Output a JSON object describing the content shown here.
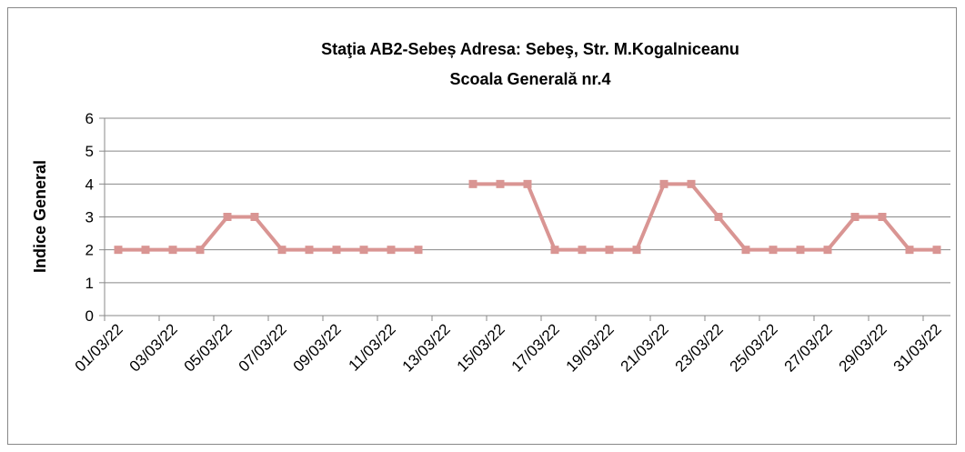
{
  "chart_data": {
    "type": "line",
    "title": [
      "Staţia AB2-Sebeș  Adresa: Sebeş,  Str. M.Kogalniceanu",
      "Scoala Generală nr.4"
    ],
    "y_label": "Indice General",
    "categories": [
      "01/03/22",
      null,
      "03/03/22",
      null,
      "05/03/22",
      null,
      "07/03/22",
      null,
      "09/03/22",
      null,
      "11/03/22",
      null,
      "13/03/22",
      null,
      "15/03/22",
      null,
      "17/03/22",
      null,
      "19/03/22",
      null,
      "21/03/22",
      null,
      "23/03/22",
      null,
      "25/03/22",
      null,
      "27/03/22",
      null,
      "29/03/22",
      null,
      "31/03/22"
    ],
    "series": [
      {
        "name": "Indice General",
        "color": "#d99593",
        "values": [
          2,
          2,
          2,
          2,
          3,
          3,
          2,
          2,
          2,
          2,
          2,
          2,
          null,
          4,
          4,
          4,
          2,
          2,
          2,
          2,
          4,
          4,
          3,
          2,
          2,
          2,
          2,
          3,
          3,
          2,
          2
        ]
      }
    ],
    "ylim": [
      0,
      6
    ],
    "yticks": [
      0,
      1,
      2,
      3,
      4,
      5,
      6
    ],
    "grid": true
  }
}
